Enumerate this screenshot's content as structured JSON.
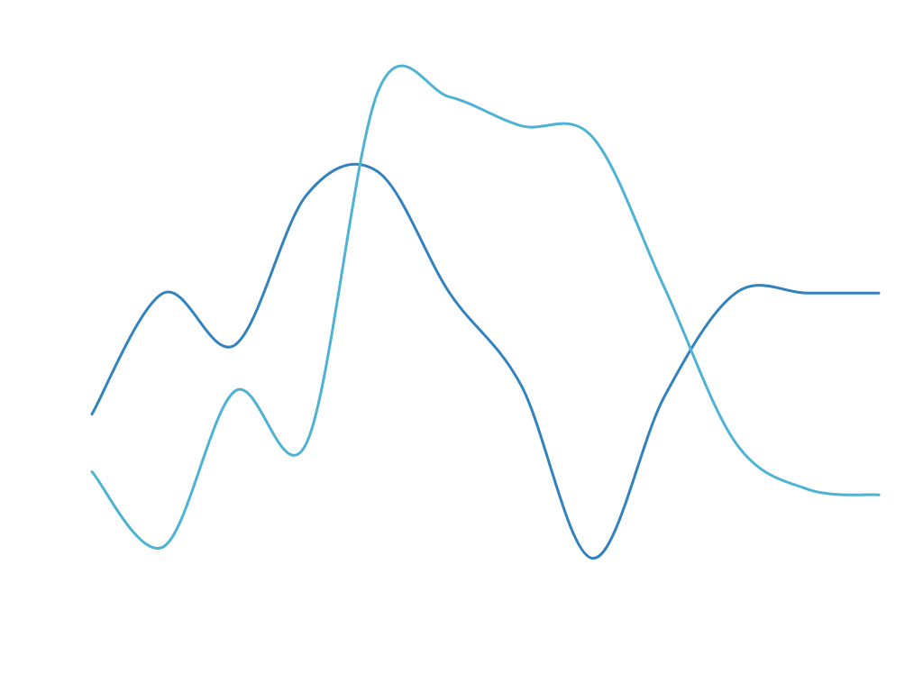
{
  "chart_data": {
    "type": "line",
    "categories": [
      null,
      null,
      null,
      null,
      null,
      null,
      null,
      null,
      null,
      null,
      null,
      null
    ],
    "series": [
      {
        "color": "#3182bd",
        "values": [
          3.6,
          5.7,
          4.8,
          7.4,
          7.8,
          5.7,
          4.1,
          1.1,
          3.9,
          5.7,
          5.7,
          5.7
        ]
      },
      {
        "color": "#4eb3d3",
        "values": [
          2.6,
          1.3,
          4.0,
          3.1,
          9.2,
          9.1,
          8.6,
          8.4,
          5.8,
          3.1,
          2.3,
          2.2
        ]
      }
    ],
    "ylim": [
      0,
      10
    ]
  }
}
